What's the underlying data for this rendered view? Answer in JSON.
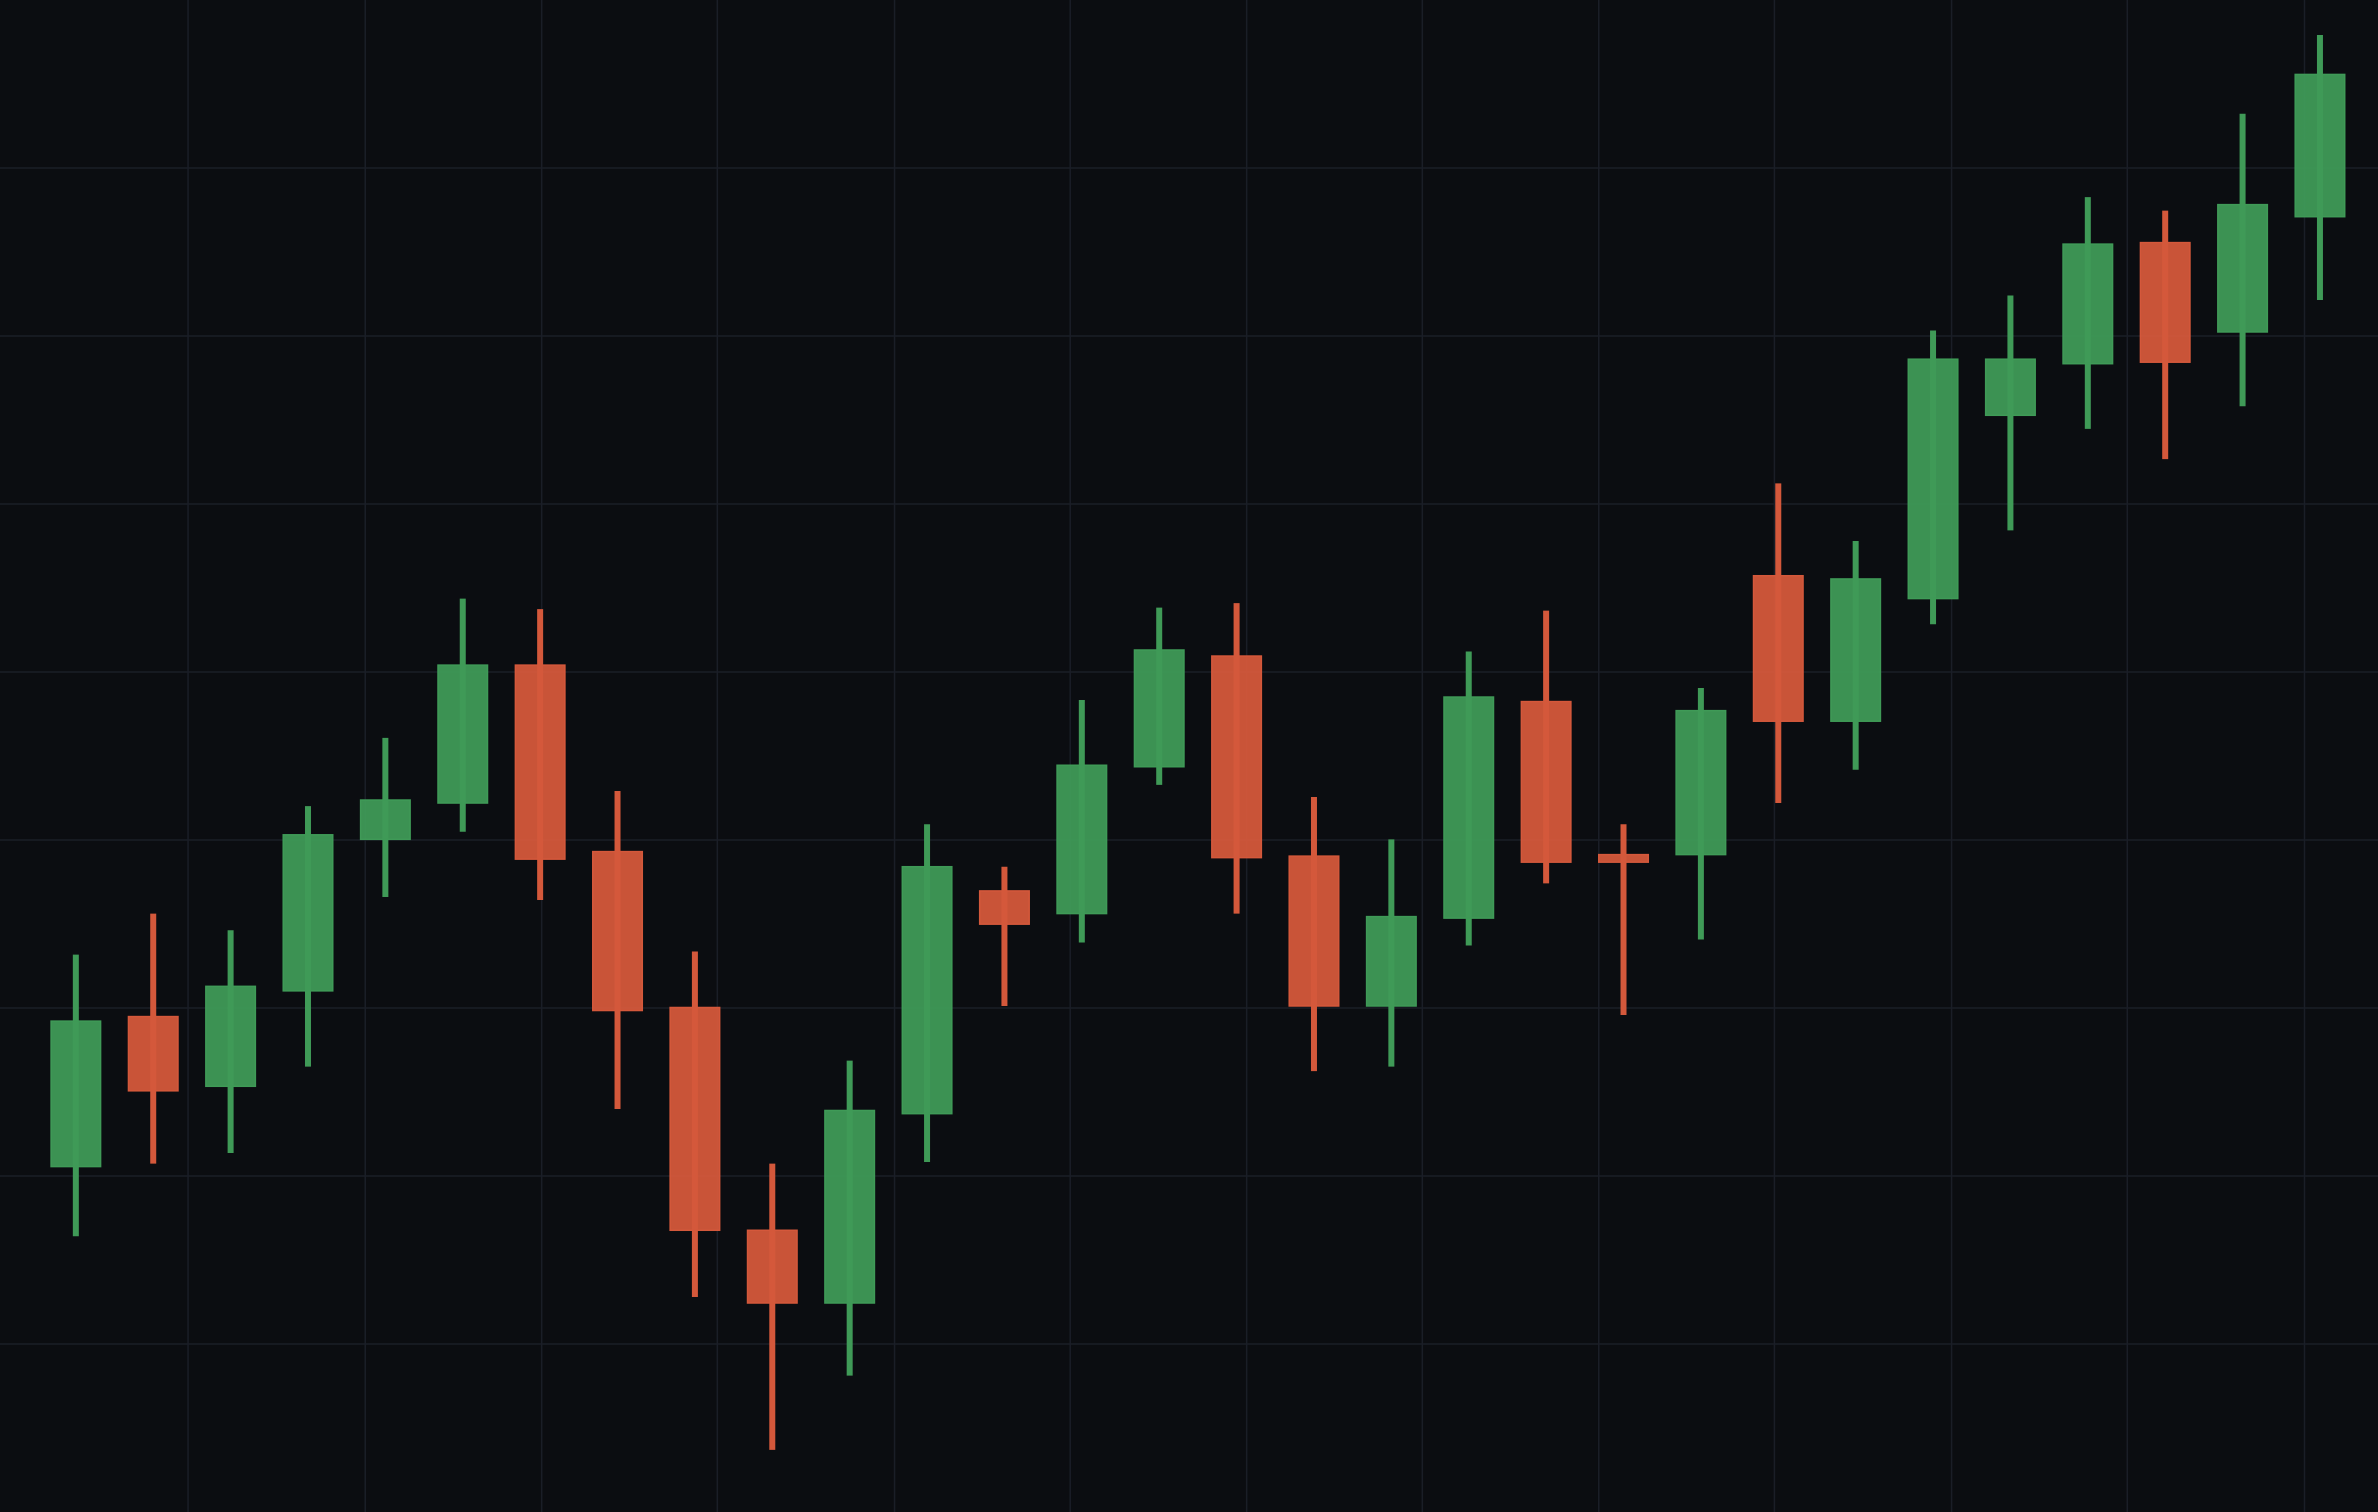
{
  "chart_data": {
    "type": "candlestick",
    "x": [
      0,
      1,
      2,
      3,
      4,
      5,
      6,
      7,
      8,
      9,
      10,
      11,
      12,
      13,
      14,
      15,
      16,
      17,
      18,
      19,
      20,
      21,
      22,
      23,
      24,
      25,
      26,
      27,
      28,
      29
    ],
    "open": [
      20.56,
      29.49,
      25.34,
      31.02,
      40.04,
      42.2,
      50.41,
      39.31,
      30.03,
      16.77,
      12.44,
      23.71,
      36.97,
      35.62,
      44.36,
      50.95,
      39.04,
      30.12,
      35.35,
      48.24,
      39.13,
      39.13,
      55.73,
      47.07,
      54.37,
      65.28,
      68.35,
      75.56,
      70.24,
      77.1
    ],
    "high": [
      33.18,
      35.62,
      34.63,
      42.02,
      46.08,
      54.37,
      53.74,
      42.92,
      33.36,
      20.74,
      26.87,
      40.94,
      38.41,
      48.33,
      53.83,
      54.1,
      42.56,
      40.04,
      51.22,
      53.65,
      40.94,
      49.05,
      61.23,
      57.8,
      70.33,
      72.41,
      78.27,
      77.46,
      83.23,
      87.92
    ],
    "low": [
      16.41,
      20.74,
      21.37,
      26.51,
      36.61,
      40.49,
      36.43,
      23.99,
      12.8,
      3.7,
      8.12,
      20.83,
      30.12,
      33.9,
      43.28,
      35.62,
      26.24,
      26.51,
      33.72,
      37.42,
      29.58,
      34.08,
      42.2,
      44.18,
      52.84,
      58.43,
      64.47,
      62.67,
      65.82,
      72.14
    ],
    "close": [
      29.22,
      25.07,
      31.29,
      40.31,
      42.38,
      50.41,
      38.86,
      29.85,
      16.77,
      12.44,
      23.9,
      38.41,
      34.99,
      44.45,
      51.31,
      38.95,
      30.12,
      35.44,
      48.51,
      38.68,
      38.68,
      47.7,
      47.07,
      55.54,
      68.62,
      68.62,
      75.47,
      68.44,
      77.82,
      85.57
    ],
    "up_color": "#3f9a57",
    "down_color": "#d4583b",
    "xlim": [
      -0.98,
      29.75
    ],
    "xticks": [
      1.45,
      3.74,
      6.02,
      8.29,
      10.58,
      12.85,
      15.13,
      17.4,
      19.68,
      21.95,
      24.24,
      26.51,
      28.8
    ],
    "ylim": [
      0,
      90
    ],
    "yticks": [
      10,
      20,
      30,
      40,
      50,
      60,
      70,
      80
    ],
    "grid": true
  }
}
